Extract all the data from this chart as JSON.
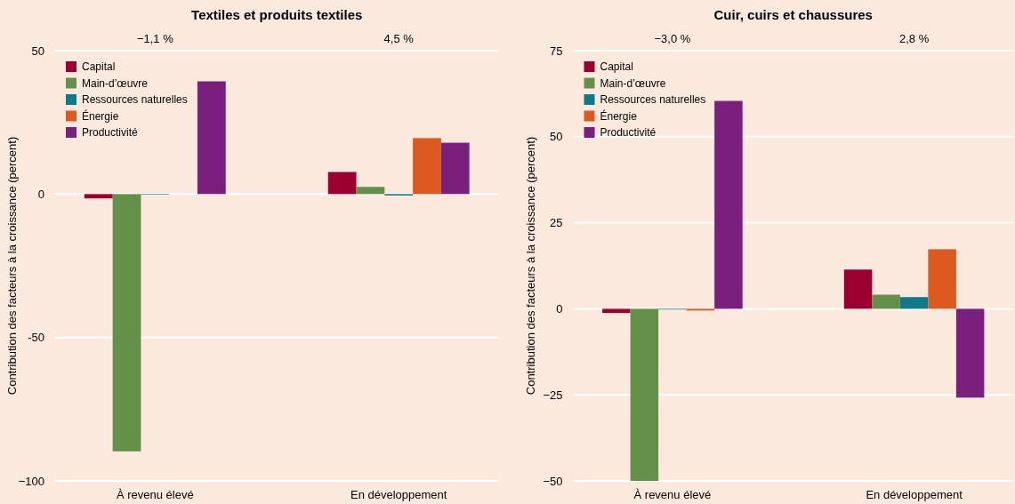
{
  "chart_data": [
    {
      "type": "bar",
      "title": "Textiles et produits textiles",
      "ylabel": "Contribution des facteurs à la croissance (percent)",
      "categories": [
        "À revenu élevé",
        "En développement"
      ],
      "annotations": [
        "−1,1 %",
        "4,5 %"
      ],
      "series": [
        {
          "name": "Capital",
          "color": "#9b0030",
          "values": [
            -1.5,
            7.7
          ]
        },
        {
          "name": "Main-d’œuvre",
          "color": "#64904a",
          "values": [
            -89.7,
            2.5
          ]
        },
        {
          "name": "Ressources naturelles",
          "color": "#0f7a8a",
          "values": [
            -0.2,
            -0.5
          ]
        },
        {
          "name": "Énergie",
          "color": "#dc5a20",
          "values": [
            null,
            19.5
          ]
        },
        {
          "name": "Productivité",
          "color": "#7a1f7e",
          "values": [
            39.3,
            17.9
          ]
        }
      ],
      "ylim": [
        -100,
        50
      ],
      "yticks": [
        50,
        0,
        {
          "value": -50,
          "label": "-50"
        },
        {
          "value": -100,
          "label": "−100"
        }
      ],
      "grid": "y",
      "legend": "top left"
    },
    {
      "type": "bar",
      "title": "Cuir, cuirs et chaussures",
      "ylabel": "Contribution des facteurs à la croissance (percent)",
      "categories": [
        "À revenu élevé",
        "En développement"
      ],
      "annotations": [
        "−3,0 %",
        "2,8 %"
      ],
      "series": [
        {
          "name": "Capital",
          "color": "#9b0030",
          "values": [
            -1.2,
            11.4
          ]
        },
        {
          "name": "Main-d’œuvre",
          "color": "#64904a",
          "values": [
            -50,
            4.1
          ]
        },
        {
          "name": "Ressources naturelles",
          "color": "#0f7a8a",
          "values": [
            -0.2,
            3.4
          ]
        },
        {
          "name": "Énergie",
          "color": "#dc5a20",
          "values": [
            -0.5,
            17.3
          ]
        },
        {
          "name": "Productivité",
          "color": "#7a1f7e",
          "values": [
            60.4,
            -25.8
          ]
        }
      ],
      "ylim": [
        -50,
        75
      ],
      "yticks": [
        75,
        50,
        25,
        0,
        {
          "value": -25,
          "label": "−25"
        },
        {
          "value": -50,
          "label": "−50"
        }
      ],
      "grid": "y",
      "legend": "top left"
    }
  ]
}
